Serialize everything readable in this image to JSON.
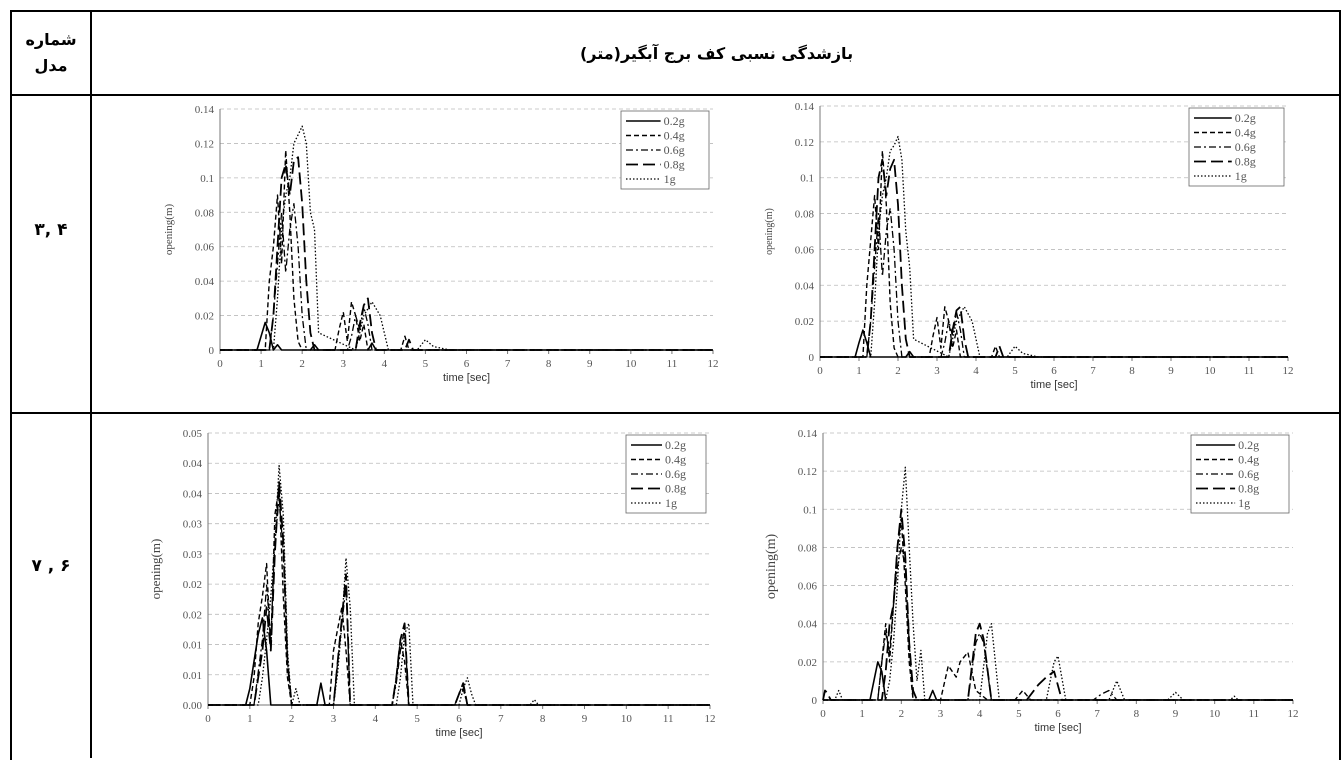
{
  "table": {
    "header_model": [
      "شماره",
      "مدل"
    ],
    "header_title": "بازشدگی نسبی کف برج آبگیر(متر)",
    "rows": [
      {
        "label": "۳, ۴"
      },
      {
        "label": "۷ , ۶"
      }
    ]
  },
  "chart_data": [
    {
      "type": "line",
      "xlabel": "time [sec]",
      "ylabel": "opening(m)",
      "xlim": [
        0,
        12
      ],
      "ylim": [
        0,
        0.14
      ],
      "xticks": [
        "0",
        "1",
        "2",
        "3",
        "4",
        "5",
        "6",
        "7",
        "8",
        "9",
        "10",
        "11",
        "12"
      ],
      "yticks": [
        "0",
        "0.02",
        "0.04",
        "0.06",
        "0.08",
        "0.1",
        "0.12",
        "0.14"
      ],
      "legend": "top-right",
      "series": [
        {
          "name": "0.2g",
          "x": [
            0,
            0.9,
            1.0,
            1.1,
            1.2,
            1.3,
            1.4,
            1.5,
            2.2,
            2.3,
            2.4,
            3.6,
            3.7,
            3.8,
            12
          ],
          "y": [
            0,
            0,
            0.008,
            0.016,
            0.01,
            0,
            0.003,
            0,
            0,
            0.003,
            0,
            0,
            0.004,
            0,
            0
          ]
        },
        {
          "name": "0.4g",
          "x": [
            0,
            1.1,
            1.2,
            1.3,
            1.4,
            1.5,
            1.6,
            1.7,
            1.8,
            1.9,
            2.0,
            2.1,
            2.8,
            2.9,
            3.0,
            3.1,
            3.2,
            3.3,
            3.4,
            3.5,
            3.6,
            4.4,
            4.5,
            4.6,
            12
          ],
          "y": [
            0,
            0,
            0.04,
            0.06,
            0.09,
            0.05,
            0.116,
            0.08,
            0.03,
            0.005,
            0,
            0,
            0,
            0.012,
            0.022,
            0.005,
            0.028,
            0.02,
            0.005,
            0.015,
            0,
            0,
            0.008,
            0,
            0
          ]
        },
        {
          "name": "0.6g",
          "x": [
            0,
            1.2,
            1.3,
            1.4,
            1.5,
            1.6,
            1.7,
            1.8,
            1.9,
            2.0,
            2.1,
            3.1,
            3.2,
            3.3,
            3.4,
            3.5,
            3.6,
            3.7,
            12
          ],
          "y": [
            0,
            0,
            0.02,
            0.05,
            0.08,
            0.045,
            0.07,
            0.085,
            0.06,
            0.02,
            0,
            0,
            0.008,
            0.02,
            0.012,
            0.025,
            0.015,
            0,
            0
          ]
        },
        {
          "name": "0.8g",
          "x": [
            0,
            1.2,
            1.3,
            1.4,
            1.5,
            1.6,
            1.7,
            1.8,
            1.9,
            2.0,
            2.1,
            2.2,
            2.3,
            3.3,
            3.4,
            3.5,
            3.6,
            3.7,
            3.8,
            4.5,
            4.6,
            4.7,
            12
          ],
          "y": [
            0,
            0,
            0.02,
            0.06,
            0.1,
            0.108,
            0.09,
            0.11,
            0.112,
            0.085,
            0.04,
            0.01,
            0,
            0,
            0.015,
            0.026,
            0.03,
            0.01,
            0,
            0,
            0.006,
            0,
            0
          ]
        },
        {
          "name": "1g",
          "x": [
            0,
            1.3,
            1.4,
            1.5,
            1.6,
            1.7,
            1.8,
            1.9,
            2.0,
            2.1,
            2.2,
            2.3,
            2.4,
            3.3,
            3.5,
            3.7,
            3.9,
            4.1,
            4.8,
            5.0,
            5.2,
            5.6,
            12
          ],
          "y": [
            0,
            0,
            0.03,
            0.07,
            0.09,
            0.1,
            0.12,
            0.125,
            0.13,
            0.12,
            0.08,
            0.07,
            0.01,
            0,
            0.02,
            0.028,
            0.02,
            0,
            0,
            0.006,
            0.002,
            0,
            0
          ]
        }
      ]
    },
    {
      "type": "line",
      "xlabel": "time [sec]",
      "ylabel": "opening(m)",
      "xlim": [
        0,
        12
      ],
      "ylim": [
        0,
        0.14
      ],
      "xticks": [
        "0",
        "1",
        "2",
        "3",
        "4",
        "5",
        "6",
        "7",
        "8",
        "9",
        "10",
        "11",
        "12"
      ],
      "yticks": [
        "0",
        "0.02",
        "0.04",
        "0.06",
        "0.08",
        "0.1",
        "0.12",
        "0.14"
      ],
      "legend": "top-right",
      "series": [
        {
          "name": "0.2g",
          "x": [
            0,
            0.9,
            1.0,
            1.1,
            1.2,
            1.3,
            1.4,
            2.2,
            2.3,
            2.4,
            12
          ],
          "y": [
            0,
            0,
            0.008,
            0.015,
            0.008,
            0,
            0,
            0,
            0.003,
            0,
            0
          ]
        },
        {
          "name": "0.4g",
          "x": [
            0,
            1.1,
            1.2,
            1.3,
            1.4,
            1.5,
            1.6,
            1.7,
            1.8,
            1.9,
            2.0,
            2.1,
            2.8,
            2.9,
            3.0,
            3.1,
            3.2,
            3.3,
            3.4,
            3.5,
            3.6,
            4.4,
            4.5,
            4.6,
            12
          ],
          "y": [
            0,
            0,
            0.04,
            0.065,
            0.09,
            0.06,
            0.115,
            0.085,
            0.03,
            0.005,
            0,
            0,
            0,
            0.012,
            0.022,
            0.005,
            0.028,
            0.02,
            0.005,
            0.015,
            0,
            0,
            0.006,
            0,
            0
          ]
        },
        {
          "name": "0.6g",
          "x": [
            0,
            1.2,
            1.3,
            1.4,
            1.5,
            1.6,
            1.7,
            1.8,
            1.9,
            2.0,
            2.1,
            3.1,
            3.2,
            3.3,
            3.4,
            3.5,
            3.6,
            3.7,
            12
          ],
          "y": [
            0,
            0,
            0.02,
            0.05,
            0.08,
            0.045,
            0.07,
            0.083,
            0.06,
            0.02,
            0,
            0,
            0.008,
            0.02,
            0.012,
            0.025,
            0.015,
            0,
            0
          ]
        },
        {
          "name": "0.8g",
          "x": [
            0,
            1.2,
            1.3,
            1.4,
            1.5,
            1.6,
            1.7,
            1.8,
            1.9,
            2.0,
            2.1,
            2.2,
            2.3,
            3.3,
            3.4,
            3.5,
            3.6,
            3.7,
            3.8,
            4.5,
            4.6,
            4.7,
            12
          ],
          "y": [
            0,
            0,
            0.02,
            0.06,
            0.1,
            0.11,
            0.09,
            0.105,
            0.11,
            0.085,
            0.04,
            0.01,
            0,
            0,
            0.015,
            0.026,
            0.028,
            0.01,
            0,
            0,
            0.006,
            0,
            0
          ]
        },
        {
          "name": "1g",
          "x": [
            0,
            1.3,
            1.4,
            1.5,
            1.6,
            1.7,
            1.8,
            1.9,
            2.0,
            2.1,
            2.2,
            2.3,
            2.4,
            3.3,
            3.5,
            3.7,
            3.9,
            4.1,
            4.8,
            5.0,
            5.2,
            5.6,
            12
          ],
          "y": [
            0,
            0,
            0.03,
            0.07,
            0.09,
            0.1,
            0.115,
            0.118,
            0.123,
            0.11,
            0.07,
            0.05,
            0.01,
            0,
            0.02,
            0.028,
            0.02,
            0,
            0,
            0.006,
            0.002,
            0,
            0
          ]
        }
      ]
    },
    {
      "type": "line",
      "xlabel": "time [sec]",
      "ylabel": "opening(m)",
      "xlim": [
        0,
        12
      ],
      "ylim": [
        0,
        0.05
      ],
      "xticks": [
        "0",
        "1",
        "2",
        "3",
        "4",
        "5",
        "6",
        "7",
        "8",
        "9",
        "10",
        "11",
        "12"
      ],
      "yticks": [
        "0.00",
        "0.01",
        "0.01",
        "0.02",
        "0.02",
        "0.03",
        "0.03",
        "0.04",
        "0.04",
        "0.05"
      ],
      "legend": "top-right",
      "series": [
        {
          "name": "0.2g",
          "x": [
            0,
            0.9,
            1.0,
            1.1,
            1.2,
            1.3,
            1.4,
            1.5,
            2.6,
            2.7,
            2.8,
            12
          ],
          "y": [
            0,
            0,
            0.003,
            0.008,
            0.013,
            0.016,
            0.01,
            0,
            0,
            0.004,
            0,
            0
          ]
        },
        {
          "name": "0.4g",
          "x": [
            0,
            1.0,
            1.1,
            1.2,
            1.3,
            1.4,
            1.5,
            1.6,
            1.7,
            1.8,
            1.9,
            2.0,
            2.9,
            3.0,
            3.1,
            3.2,
            3.3,
            3.4,
            4.4,
            4.5,
            4.6,
            4.7,
            4.8,
            5.9,
            6.0,
            6.1,
            6.2,
            12
          ],
          "y": [
            0,
            0,
            0.005,
            0.015,
            0.02,
            0.026,
            0.01,
            0.035,
            0.04,
            0.02,
            0.005,
            0,
            0,
            0.01,
            0.014,
            0.018,
            0.01,
            0,
            0,
            0.005,
            0.012,
            0.008,
            0,
            0,
            0.002,
            0.004,
            0,
            0
          ]
        },
        {
          "name": "0.6g",
          "x": [
            0,
            1.1,
            1.2,
            1.3,
            1.4,
            1.5,
            1.6,
            1.7,
            1.8,
            1.9,
            2.0,
            3.0,
            3.1,
            3.2,
            3.3,
            3.4,
            4.4,
            4.5,
            4.6,
            4.7,
            4.8,
            5.9,
            6.0,
            6.1,
            6.2,
            12
          ],
          "y": [
            0,
            0,
            0.006,
            0.012,
            0.022,
            0.012,
            0.03,
            0.038,
            0.028,
            0.008,
            0,
            0,
            0.008,
            0.015,
            0.022,
            0,
            0,
            0.004,
            0.01,
            0.014,
            0,
            0,
            0.002,
            0.003,
            0,
            0
          ]
        },
        {
          "name": "0.8g",
          "x": [
            0,
            1.1,
            1.2,
            1.3,
            1.4,
            1.5,
            1.6,
            1.7,
            1.8,
            1.9,
            2.0,
            3.0,
            3.1,
            3.2,
            3.3,
            3.4,
            4.4,
            4.5,
            4.6,
            4.7,
            4.8,
            5.9,
            6.0,
            6.1,
            6.2,
            12
          ],
          "y": [
            0,
            0,
            0.005,
            0.01,
            0.018,
            0.01,
            0.028,
            0.041,
            0.03,
            0.008,
            0,
            0,
            0.008,
            0.016,
            0.024,
            0,
            0,
            0.005,
            0.012,
            0.015,
            0,
            0,
            0.002,
            0.004,
            0,
            0
          ]
        },
        {
          "name": "1g",
          "x": [
            0,
            1.2,
            1.3,
            1.4,
            1.5,
            1.6,
            1.7,
            1.8,
            1.9,
            2.0,
            2.1,
            2.2,
            3.0,
            3.1,
            3.2,
            3.3,
            3.4,
            3.5,
            4.5,
            4.6,
            4.7,
            4.8,
            4.9,
            6.0,
            6.1,
            6.2,
            6.3,
            6.4,
            7.7,
            7.8,
            7.9,
            12
          ],
          "y": [
            0,
            0,
            0.005,
            0.012,
            0.02,
            0.03,
            0.044,
            0.035,
            0.01,
            0,
            0.003,
            0,
            0,
            0.006,
            0.015,
            0.027,
            0.018,
            0,
            0,
            0.005,
            0.013,
            0.015,
            0,
            0,
            0.003,
            0.005,
            0.002,
            0,
            0,
            0.001,
            0,
            0
          ]
        }
      ]
    },
    {
      "type": "line",
      "xlabel": "time [sec]",
      "ylabel": "opening(m)",
      "xlim": [
        0,
        12
      ],
      "ylim": [
        0,
        0.14
      ],
      "xticks": [
        "0",
        "1",
        "2",
        "3",
        "4",
        "5",
        "6",
        "7",
        "8",
        "9",
        "10",
        "11",
        "12"
      ],
      "yticks": [
        "0",
        "0.02",
        "0.04",
        "0.06",
        "0.08",
        "0.1",
        "0.12",
        "0.14"
      ],
      "legend": "top-right",
      "series": [
        {
          "name": "0.2g",
          "x": [
            0,
            1.2,
            1.3,
            1.4,
            1.5,
            1.6,
            2.7,
            2.8,
            2.9,
            12
          ],
          "y": [
            0,
            0,
            0.01,
            0.02,
            0.015,
            0,
            0,
            0.005,
            0,
            0
          ]
        },
        {
          "name": "0.4g",
          "x": [
            0,
            1.4,
            1.5,
            1.6,
            1.7,
            1.8,
            1.9,
            2.0,
            2.1,
            2.2,
            2.3,
            3.0,
            3.2,
            3.4,
            3.5,
            3.7,
            3.9,
            4.2,
            4.9,
            5.1,
            5.3,
            12
          ],
          "y": [
            0,
            0,
            0.02,
            0.04,
            0.02,
            0.05,
            0.08,
            0.095,
            0.06,
            0.02,
            0,
            0,
            0.018,
            0.012,
            0.02,
            0.025,
            0.005,
            0,
            0,
            0.005,
            0,
            0
          ]
        },
        {
          "name": "0.6g",
          "x": [
            0,
            1.4,
            1.5,
            1.6,
            1.7,
            1.8,
            1.9,
            2.0,
            2.1,
            2.2,
            2.3,
            3.7,
            3.9,
            4.0,
            4.1,
            4.3,
            6.9,
            7.1,
            7.3,
            7.5,
            12
          ],
          "y": [
            0,
            0,
            0.02,
            0.035,
            0.025,
            0.05,
            0.07,
            0.08,
            0.07,
            0.03,
            0,
            0,
            0.03,
            0.035,
            0.03,
            0,
            0,
            0.003,
            0.005,
            0,
            0
          ]
        },
        {
          "name": "0.8g",
          "x": [
            0,
            0.05,
            0.1,
            0.2,
            1.5,
            1.6,
            1.7,
            1.8,
            1.9,
            2.0,
            2.1,
            2.2,
            2.3,
            2.4,
            3.7,
            3.9,
            4.0,
            4.1,
            4.3,
            5.2,
            5.5,
            5.7,
            5.9,
            6.1,
            12
          ],
          "y": [
            0,
            0.005,
            0.004,
            0,
            0,
            0.015,
            0.04,
            0.05,
            0.08,
            0.1,
            0.075,
            0.03,
            0.005,
            0,
            0,
            0.035,
            0.04,
            0.032,
            0,
            0,
            0.008,
            0.012,
            0.015,
            0,
            0
          ]
        },
        {
          "name": "1g",
          "x": [
            0,
            0.3,
            0.4,
            0.5,
            1.6,
            1.7,
            1.8,
            1.9,
            2.0,
            2.1,
            2.2,
            2.3,
            2.4,
            2.5,
            2.6,
            4.0,
            4.2,
            4.3,
            4.5,
            5.7,
            5.9,
            6.0,
            6.2,
            7.3,
            7.5,
            7.7,
            8.8,
            9.0,
            9.2,
            10.4,
            10.5,
            10.6,
            12
          ],
          "y": [
            0,
            0,
            0.005,
            0,
            0,
            0.01,
            0.03,
            0.06,
            0.1,
            0.122,
            0.08,
            0.04,
            0.01,
            0.026,
            0,
            0,
            0.035,
            0.04,
            0,
            0,
            0.02,
            0.023,
            0,
            0,
            0.01,
            0,
            0,
            0.004,
            0,
            0,
            0.002,
            0,
            0
          ]
        }
      ]
    }
  ]
}
